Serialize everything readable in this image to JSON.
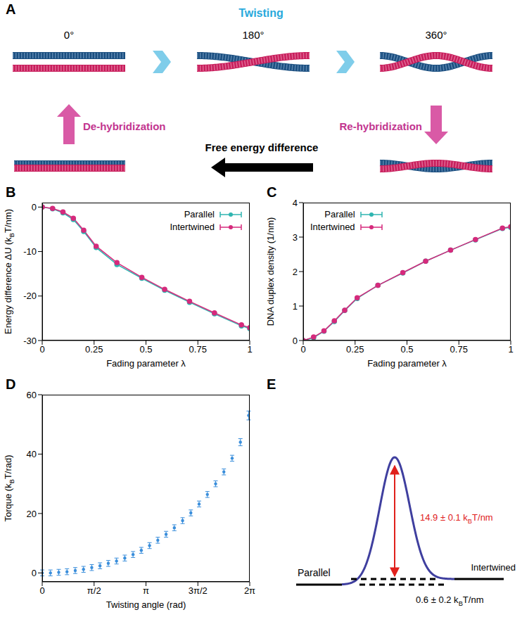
{
  "diagram_A": {
    "panel_label": "A",
    "title": "Twisting",
    "angles": [
      "0°",
      "180°",
      "360°"
    ],
    "left_arrow": "De-hybridization",
    "right_arrow": "Re-hybridization",
    "bottom_arrow": "Free energy difference"
  },
  "chart_data": [
    {
      "panel_label": "B",
      "type": "line",
      "x_label": "Fading parameter λ",
      "y_label": "Energy difference ΔU (kBT/nm)",
      "x": [
        0,
        0.05,
        0.1,
        0.15,
        0.2,
        0.26,
        0.36,
        0.48,
        0.59,
        0.71,
        0.83,
        0.96,
        1
      ],
      "xlim": [
        0,
        1
      ],
      "xticks": [
        0,
        0.25,
        0.5,
        0.75,
        1
      ],
      "ylim": [
        -30,
        1
      ],
      "yticks": [
        -30,
        -20,
        -10,
        0
      ],
      "grid": false,
      "legend": "upper right",
      "marker": "circle",
      "series": [
        {
          "name": "Parallel",
          "color": "#2fb5b0",
          "values": [
            0,
            -0.4,
            -1.3,
            -2.8,
            -5.5,
            -9.1,
            -12.9,
            -16.0,
            -18.7,
            -21.4,
            -24.0,
            -26.7,
            -27.3
          ]
        },
        {
          "name": "Intertwined",
          "color": "#d62a7c",
          "values": [
            0,
            -0.3,
            -1.1,
            -2.5,
            -5.2,
            -8.8,
            -12.5,
            -15.8,
            -18.5,
            -21.2,
            -23.8,
            -26.5,
            -27.1
          ]
        }
      ]
    },
    {
      "panel_label": "C",
      "type": "line",
      "x_label": "Fading parameter λ",
      "y_label": "DNA duplex density (1/nm)",
      "x": [
        0,
        0.05,
        0.1,
        0.15,
        0.2,
        0.26,
        0.36,
        0.48,
        0.59,
        0.71,
        0.83,
        0.96,
        1
      ],
      "xlim": [
        0,
        1
      ],
      "xticks": [
        0,
        0.25,
        0.5,
        0.75,
        1
      ],
      "ylim": [
        0,
        4
      ],
      "yticks": [
        0,
        1,
        2,
        3,
        4
      ],
      "grid": false,
      "legend": "upper left",
      "marker": "circle",
      "series": [
        {
          "name": "Parallel",
          "color": "#2fb5b0",
          "values": [
            0,
            0.08,
            0.27,
            0.55,
            0.87,
            1.22,
            1.6,
            1.96,
            2.3,
            2.62,
            2.92,
            3.25,
            3.28
          ]
        },
        {
          "name": "Intertwined",
          "color": "#d62a7c",
          "values": [
            0,
            0.1,
            0.28,
            0.57,
            0.88,
            1.24,
            1.6,
            1.97,
            2.3,
            2.62,
            2.93,
            3.26,
            3.3
          ]
        }
      ]
    },
    {
      "panel_label": "D",
      "type": "scatter",
      "x_label": "Twisting angle (rad)",
      "y_label": "Torque (kBT/rad)",
      "x": [
        0,
        0.25,
        0.5,
        0.75,
        1,
        1.25,
        1.5,
        1.75,
        2,
        2.25,
        2.5,
        2.75,
        3,
        3.25,
        3.5,
        3.75,
        4,
        4.25,
        4.5,
        4.75,
        5,
        5.25,
        5.5,
        5.75,
        6,
        6.25
      ],
      "values": [
        0,
        0,
        0.2,
        0.4,
        0.8,
        1.2,
        1.8,
        2.4,
        3.2,
        4,
        5,
        6.2,
        7.6,
        9.2,
        11,
        13,
        15.2,
        17.6,
        20.2,
        23.2,
        26.4,
        30,
        34,
        38.6,
        44,
        53
      ],
      "errors": [
        1,
        1,
        1,
        1,
        1,
        1,
        1,
        1,
        1,
        1,
        1,
        1,
        1,
        1,
        1,
        1,
        1,
        1,
        1,
        1,
        1,
        1,
        1,
        1,
        1.2,
        1.5
      ],
      "color": "#3a8edb",
      "marker": "circle",
      "xlim": [
        0,
        6.2832
      ],
      "xticks": [
        0,
        {
          "value": 1.5708,
          "label": "π/2"
        },
        {
          "value": 3.1416,
          "label": "π"
        },
        {
          "value": 4.7124,
          "label": "3π/2"
        },
        {
          "value": 6.2832,
          "label": "2π"
        }
      ],
      "ylim": [
        -3,
        60
      ],
      "yticks": [
        0,
        20,
        40,
        60
      ],
      "grid": false
    }
  ],
  "diagram_E": {
    "panel_label": "E",
    "left_state": "Parallel",
    "right_state": "Intertwined",
    "barrier_label": "14.9 ± 0.1 kBT/nm",
    "difference_label": "0.6 ± 0.2 kBT/nm"
  }
}
